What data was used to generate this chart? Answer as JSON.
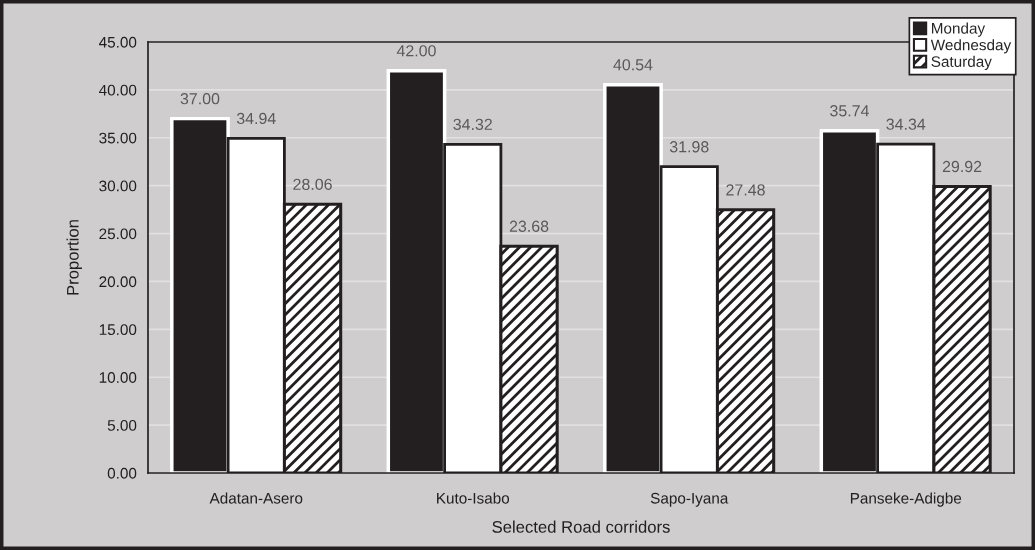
{
  "chart_data": {
    "type": "bar",
    "xlabel": "Selected Road corridors",
    "ylabel": "Proportion",
    "categories": [
      "Adatan-Asero",
      "Kuto-Isabo",
      "Sapo-Iyana",
      "Panseke-Adigbe"
    ],
    "series": [
      {
        "name": "Monday",
        "color": "#231f20",
        "values": [
          37.0,
          42.0,
          40.54,
          35.74
        ],
        "value_labels": [
          "37.00",
          "42.00",
          "40.54",
          "35.74"
        ]
      },
      {
        "name": "Wednesday",
        "color": "#ffffff",
        "values": [
          34.94,
          34.32,
          31.98,
          34.34
        ],
        "value_labels": [
          "34.94",
          "34.32",
          "31.98",
          "34.34"
        ]
      },
      {
        "name": "Saturday",
        "color": "#231f20",
        "values": [
          28.06,
          23.68,
          27.48,
          29.92
        ],
        "value_labels": [
          "28.06",
          "23.68",
          "27.48",
          "29.92"
        ]
      }
    ],
    "ylim": [
      0,
      45
    ],
    "yticks": [
      {
        "value": 0,
        "label": "0.00"
      },
      {
        "value": 5,
        "label": "5.00"
      },
      {
        "value": 10,
        "label": "10.00"
      },
      {
        "value": 15,
        "label": "15.00"
      },
      {
        "value": 20,
        "label": "20.00"
      },
      {
        "value": 25,
        "label": "25.00"
      },
      {
        "value": 30,
        "label": "30.00"
      },
      {
        "value": 35,
        "label": "35.00"
      },
      {
        "value": 40,
        "label": "40.00"
      },
      {
        "value": 45,
        "label": "45.00"
      }
    ],
    "grid": "y",
    "legend": "top right"
  }
}
